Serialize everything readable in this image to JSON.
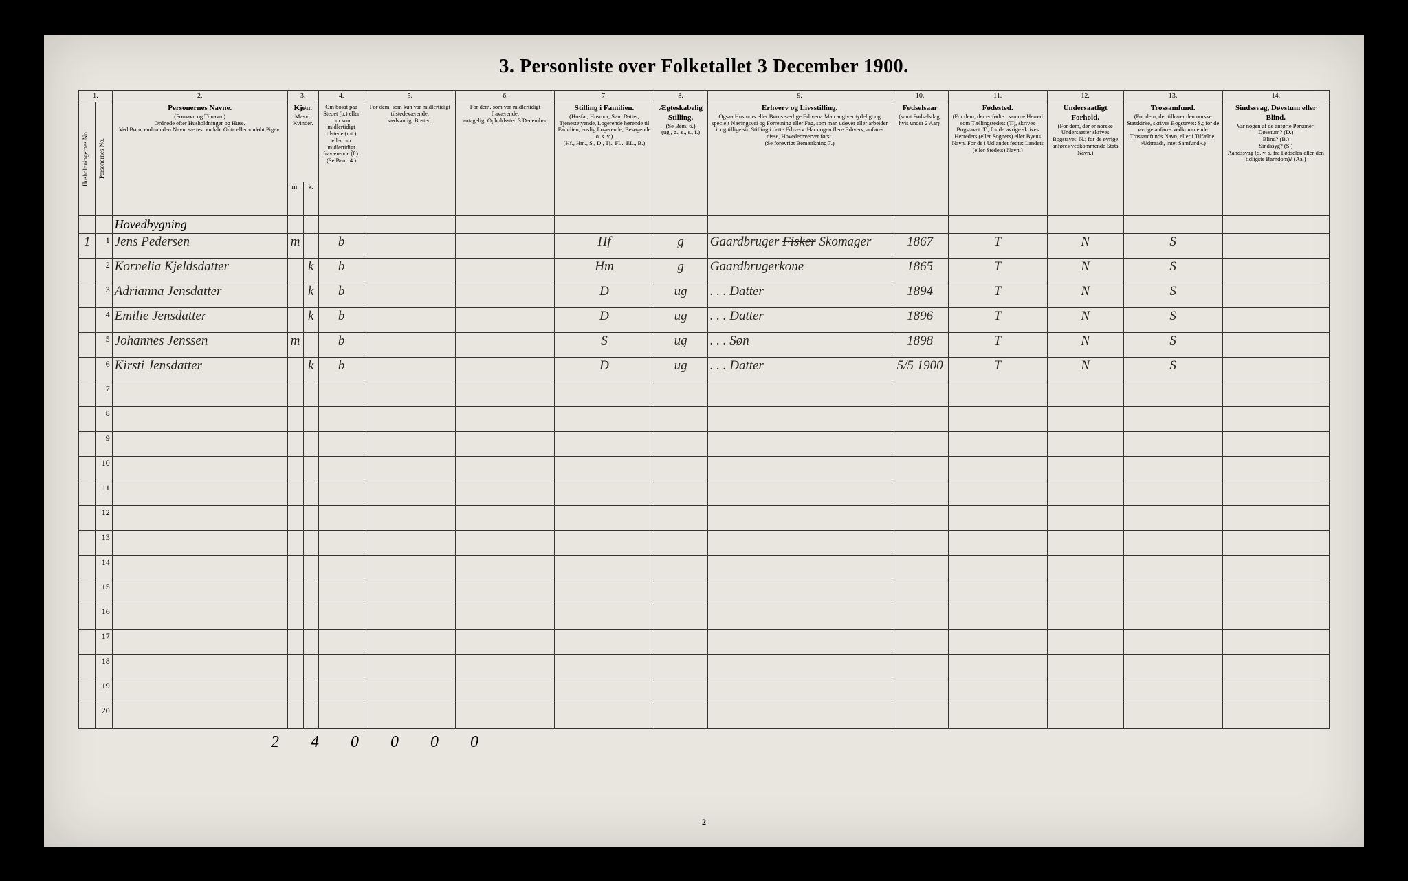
{
  "title": "3.  Personliste over Folketallet 3 December 1900.",
  "page_number_bottom": "2",
  "columns": {
    "c1": "1.",
    "c2": "2.",
    "c3": "3.",
    "c4": "4.",
    "c5": "5.",
    "c6": "6.",
    "c7": "7.",
    "c8": "8.",
    "c9": "9.",
    "c10": "10.",
    "c11": "11.",
    "c12": "12.",
    "c13": "13.",
    "c14": "14."
  },
  "headers": {
    "h1_rot": "Husholdningernes No.",
    "h1b_rot": "Personernes No.",
    "h2_main": "Personernes Navne.",
    "h2_sub": "(Fornavn og Tilnavn.)\nOrdnede efter Husholdninger og Huse.\nVed Børn, endnu uden Navn, sættes: «udøbt Gut» eller «udøbt Pige».",
    "h3_main": "Kjøn.",
    "h3_sub": "Mænd.  Kvinder.",
    "h3_mk_m": "m.",
    "h3_mk_k": "k.",
    "h4_main": "Om bosat paa Stedet (b.) eller om kun midlertidigt tilstede (mt.) eller om midlertidigt fraværende (f.).",
    "h4_sub": "(Se Bem. 4.)",
    "h5_main": "For dem, som kun var midlertidigt tilstedeværende:",
    "h5_sub": "sædvanligt Bosted.",
    "h6_main": "For dem, som var midlertidigt fraværende:",
    "h6_sub": "antageligt Opholdssted 3 December.",
    "h7_main": "Stilling i Familien.",
    "h7_sub": "(Husfar, Husmor, Søn, Datter, Tjenestetyende, Logerende hørende til Familien, enslig Logerende, Besøgende o. s. v.)\n(Hf., Hm., S., D., Tj., FL., EL., B.)",
    "h8_main": "Ægteskabelig Stilling.",
    "h8_sub": "(Se Bem. 6.)\n(ug., g., e., s., f.)",
    "h9_main": "Erhverv og Livsstilling.",
    "h9_sub": "Ogsaa Husmors eller Børns særlige Erhverv. Man angiver tydeligt og specielt Næringsvei og Forretning eller Fag, som man udøver eller arbeider i, og tillige sin Stilling i dette Erhverv. Har nogen flere Erhverv, anføres disse, Hovederhvervet først.\n(Se forøvrigt Bemærkning 7.)",
    "h10_main": "Fødselsaar",
    "h10_sub": "(samt Fødselsdag, hvis under 2 Aar).",
    "h11_main": "Fødested.",
    "h11_sub": "(For dem, der er fødte i samme Herred som Tællingstedets (T.), skrives Bogstavet: T.; for de øvrige skrives Herredets (eller Sognets) eller Byens Navn. For de i Udlandet fødte: Landets (eller Stedets) Navn.)",
    "h12_main": "Undersaatligt Forhold.",
    "h12_sub": "(For dem, der er norske Undersaatter skrives Bogstavet: N.; for de øvrige anføres vedkommende Stats Navn.)",
    "h13_main": "Trossamfund.",
    "h13_sub": "(For dem, der tilhører den norske Statskirke, skrives Bogstavet: S.; for de øvrige anføres vedkommende Trossamfunds Navn, eller i Tilfælde: «Udtraadt, intet Samfund».)",
    "h14_main": "Sindssvag, Døvstum eller Blind.",
    "h14_sub": "Var nogen af de anførte Personer:\nDøvstum? (D.)\nBlind? (B.)\nSindssyg? (S.)\nAandssvag (d. v. s. fra Fødselen eller den tidligste Barndom)? (Aa.)"
  },
  "section_label": "Hovedbygning",
  "rows": [
    {
      "hh": "1",
      "no": "1",
      "name": "Jens Pedersen",
      "m": "m",
      "k": "",
      "res": "b",
      "fam": "Hf",
      "mar": "g",
      "occ": "Gaardbruger  Fisker  Skomager",
      "occ_struck": "Fisker",
      "birth": "1867",
      "place": "T",
      "nat": "N",
      "rel": "S"
    },
    {
      "hh": "",
      "no": "2",
      "name": "Kornelia Kjeldsdatter",
      "m": "",
      "k": "k",
      "res": "b",
      "fam": "Hm",
      "mar": "g",
      "occ": "Gaardbrugerkone",
      "birth": "1865",
      "place": "T",
      "nat": "N",
      "rel": "S"
    },
    {
      "hh": "",
      "no": "3",
      "name": "Adrianna Jensdatter",
      "m": "",
      "k": "k",
      "res": "b",
      "fam": "D",
      "mar": "ug",
      "occ": ". . .  Datter",
      "birth": "1894",
      "place": "T",
      "nat": "N",
      "rel": "S"
    },
    {
      "hh": "",
      "no": "4",
      "name": "Emilie Jensdatter",
      "m": "",
      "k": "k",
      "res": "b",
      "fam": "D",
      "mar": "ug",
      "occ": ". . .  Datter",
      "birth": "1896",
      "place": "T",
      "nat": "N",
      "rel": "S"
    },
    {
      "hh": "",
      "no": "5",
      "name": "Johannes Jenssen",
      "m": "m",
      "k": "",
      "res": "b",
      "fam": "S",
      "mar": "ug",
      "occ": ". . .  Søn",
      "birth": "1898",
      "place": "T",
      "nat": "N",
      "rel": "S"
    },
    {
      "hh": "",
      "no": "6",
      "name": "Kirsti Jensdatter",
      "m": "",
      "k": "k",
      "res": "b",
      "fam": "D",
      "mar": "ug",
      "occ": ". . .  Datter",
      "birth": "5/5 1900",
      "place": "T",
      "nat": "N",
      "rel": "S"
    }
  ],
  "empty_row_numbers": [
    "7",
    "8",
    "9",
    "10",
    "11",
    "12",
    "13",
    "14",
    "15",
    "16",
    "17",
    "18",
    "19",
    "20"
  ],
  "footer_tally": "2  4   0  0    0  0",
  "col_widths": {
    "c1a": "22px",
    "c1b": "22px",
    "c2": "230px",
    "c3a": "20px",
    "c3b": "20px",
    "c4": "60px",
    "c5": "120px",
    "c6": "130px",
    "c7": "130px",
    "c8": "55px",
    "c9": "230px",
    "c10": "60px",
    "c11": "130px",
    "c12": "100px",
    "c13": "130px",
    "c14": "140px"
  }
}
